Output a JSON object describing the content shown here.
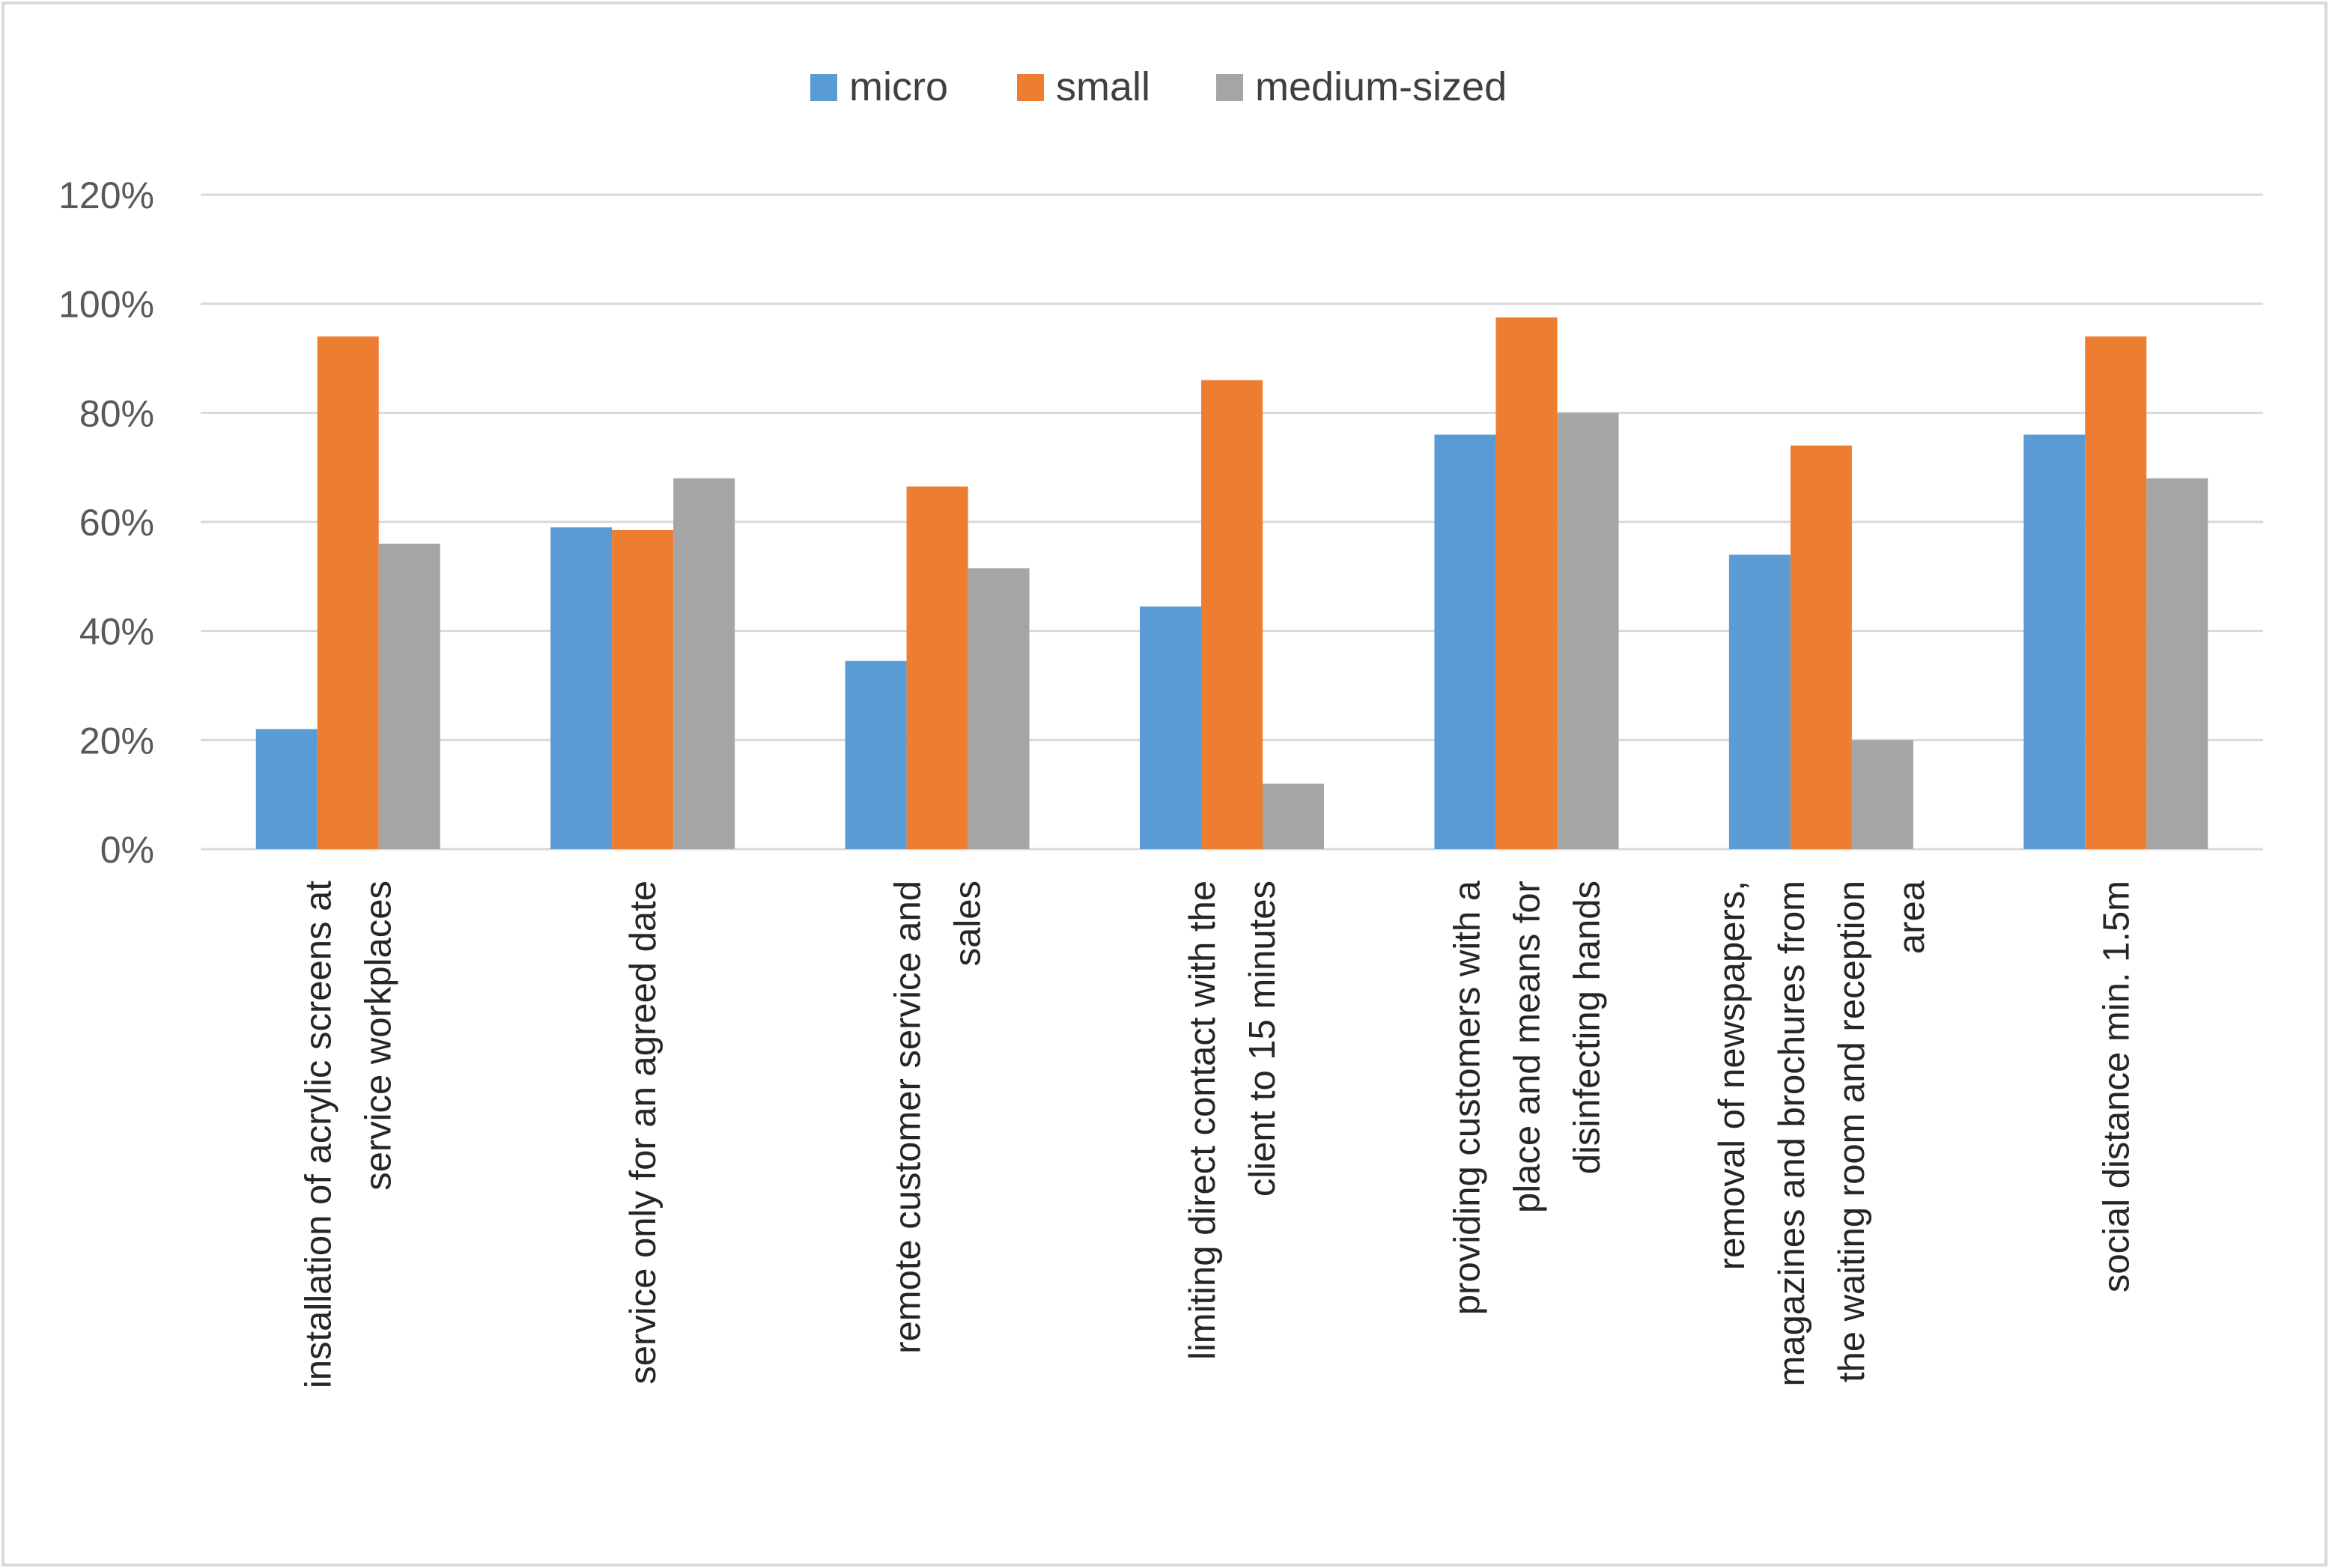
{
  "chart_data": {
    "type": "bar",
    "title": "",
    "xlabel": "",
    "ylabel": "",
    "ylim": [
      0,
      1.2
    ],
    "y_ticks": [
      {
        "value": 0.0,
        "label": "0%"
      },
      {
        "value": 0.2,
        "label": "20%"
      },
      {
        "value": 0.4,
        "label": "40%"
      },
      {
        "value": 0.6,
        "label": "60%"
      },
      {
        "value": 0.8,
        "label": "80%"
      },
      {
        "value": 1.0,
        "label": "100%"
      },
      {
        "value": 1.2,
        "label": "120%"
      }
    ],
    "grid": true,
    "legend_position": "top-center",
    "categories": [
      {
        "lines": [
          "installation of acrylic screens at",
          "service workplaces"
        ]
      },
      {
        "lines": [
          "service only for an agreed date"
        ]
      },
      {
        "lines": [
          "remote customer  service and",
          "sales"
        ]
      },
      {
        "lines": [
          "limiting direct contact with the",
          "client to 15 minutes"
        ]
      },
      {
        "lines": [
          "providing customers with a",
          "place and means for",
          "disinfecting hands"
        ]
      },
      {
        "lines": [
          "removal of newspapers,",
          "magazines and brochures from",
          "the waiting room and reception",
          "area"
        ]
      },
      {
        "lines": [
          "social distance min. 1.5m"
        ]
      }
    ],
    "series": [
      {
        "name": "micro",
        "color": "#5B9BD5",
        "values": [
          0.22,
          0.59,
          0.345,
          0.445,
          0.76,
          0.54,
          0.76
        ]
      },
      {
        "name": "small",
        "color": "#ED7D31",
        "values": [
          0.94,
          0.585,
          0.665,
          0.86,
          0.975,
          0.74,
          0.94
        ]
      },
      {
        "name": "medium-sized",
        "color": "#A5A5A5",
        "values": [
          0.56,
          0.68,
          0.515,
          0.12,
          0.8,
          0.2,
          0.68
        ]
      }
    ]
  }
}
